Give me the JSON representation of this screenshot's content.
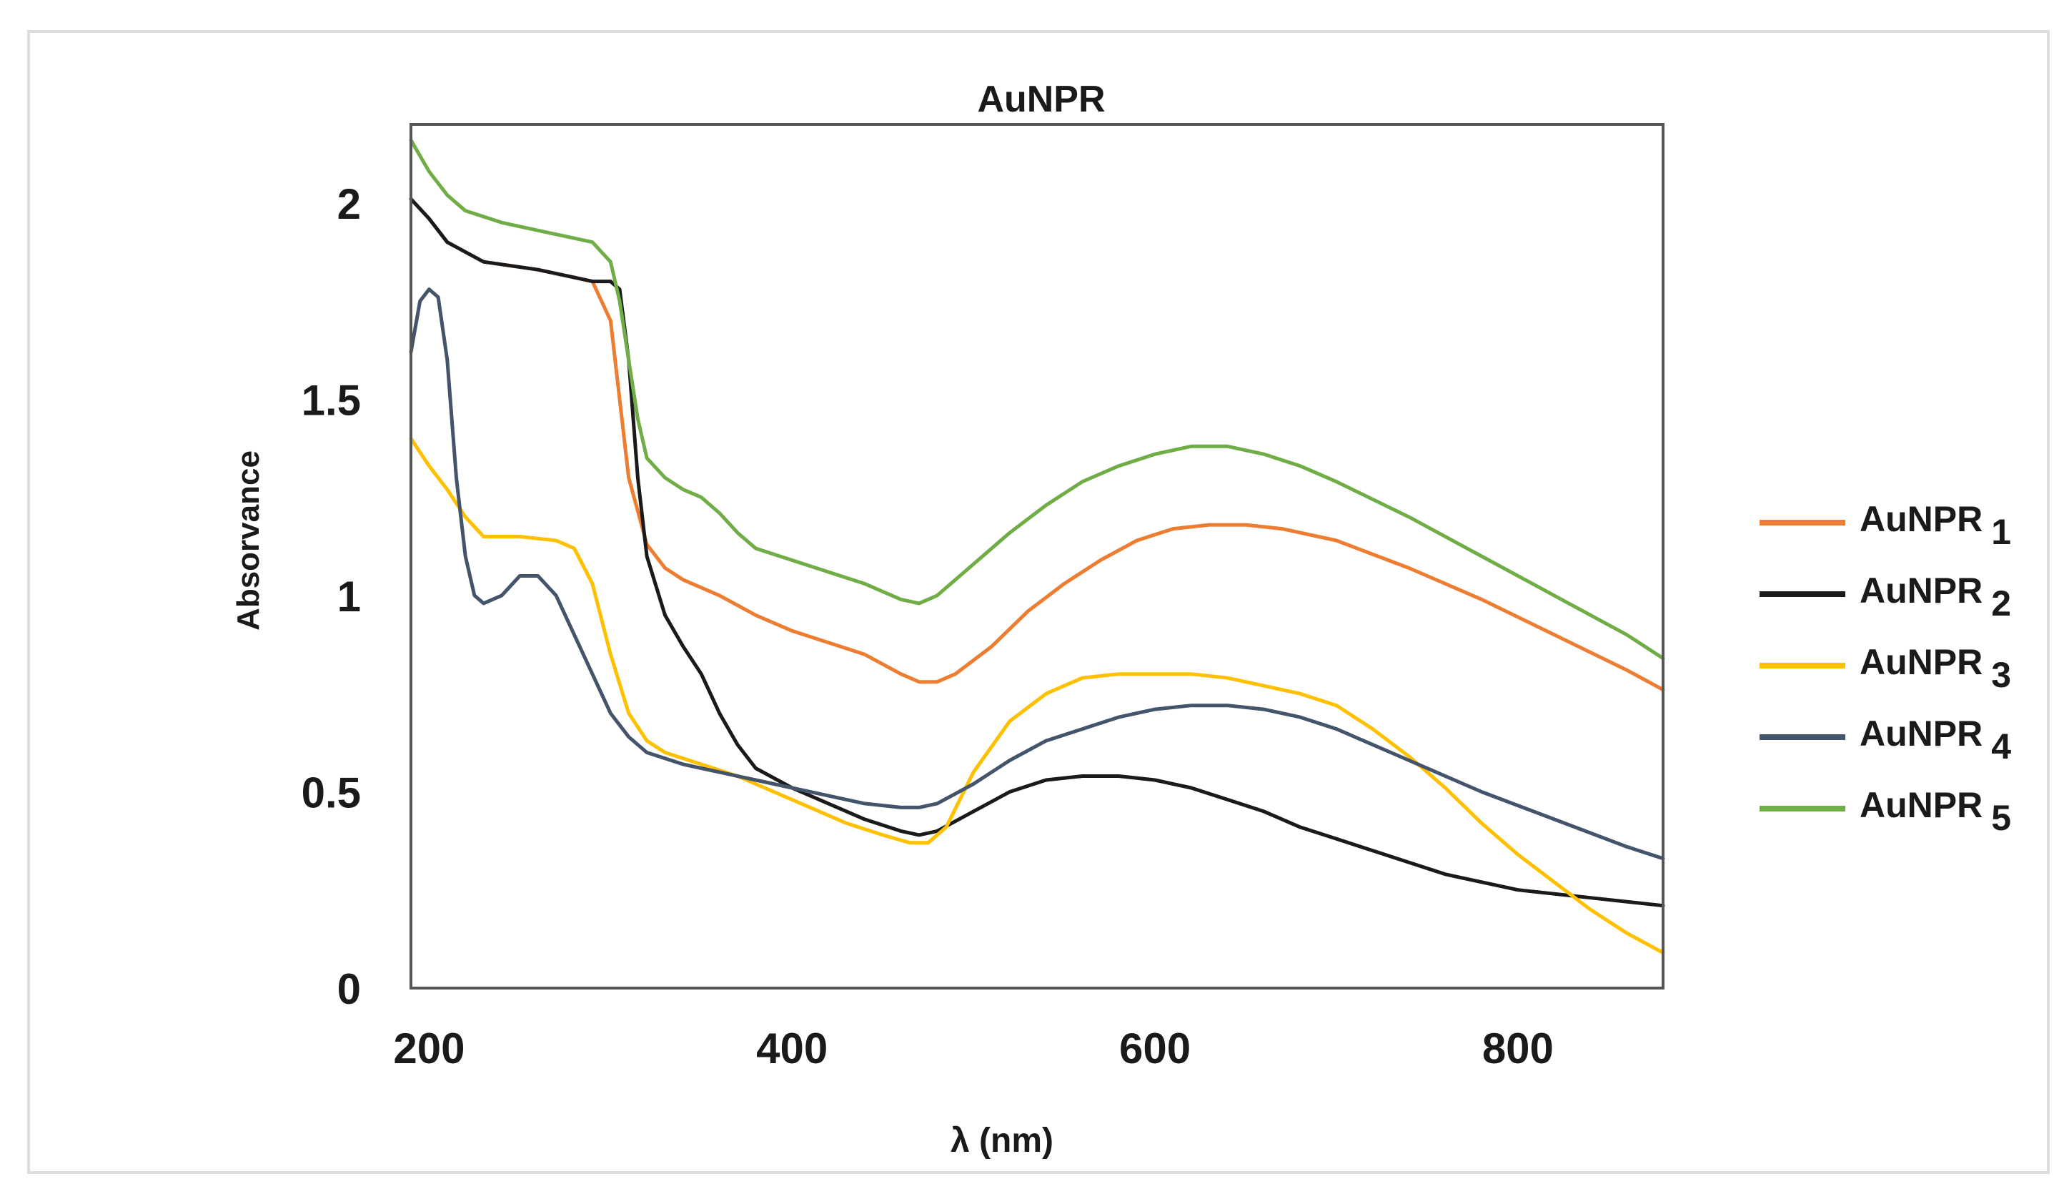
{
  "chart_data": {
    "type": "line",
    "title": "AuNPR",
    "xlabel": "λ (nm)",
    "ylabel": "Absorvance",
    "xlim": [
      190,
      880
    ],
    "ylim": [
      0,
      2.2
    ],
    "xticks": [
      200,
      400,
      600,
      800
    ],
    "yticks": [
      0,
      0.5,
      1,
      1.5,
      2
    ],
    "grid": false,
    "legend_position": "right",
    "series": [
      {
        "name": "AuNPR",
        "subscript": "1",
        "color": "#ED7D31",
        "points": [
          [
            190,
            2.01
          ],
          [
            200,
            1.96
          ],
          [
            210,
            1.9
          ],
          [
            230,
            1.85
          ],
          [
            260,
            1.83
          ],
          [
            280,
            1.81
          ],
          [
            290,
            1.8
          ],
          [
            300,
            1.7
          ],
          [
            305,
            1.5
          ],
          [
            310,
            1.3
          ],
          [
            320,
            1.13
          ],
          [
            330,
            1.07
          ],
          [
            340,
            1.04
          ],
          [
            360,
            1.0
          ],
          [
            380,
            0.95
          ],
          [
            400,
            0.91
          ],
          [
            420,
            0.88
          ],
          [
            440,
            0.85
          ],
          [
            460,
            0.8
          ],
          [
            470,
            0.78
          ],
          [
            480,
            0.78
          ],
          [
            490,
            0.8
          ],
          [
            510,
            0.87
          ],
          [
            530,
            0.96
          ],
          [
            550,
            1.03
          ],
          [
            570,
            1.09
          ],
          [
            590,
            1.14
          ],
          [
            610,
            1.17
          ],
          [
            630,
            1.18
          ],
          [
            650,
            1.18
          ],
          [
            670,
            1.17
          ],
          [
            700,
            1.14
          ],
          [
            740,
            1.07
          ],
          [
            780,
            0.99
          ],
          [
            820,
            0.9
          ],
          [
            860,
            0.81
          ],
          [
            880,
            0.76
          ]
        ]
      },
      {
        "name": "AuNPR",
        "subscript": "2",
        "color": "#1A1A1A",
        "points": [
          [
            190,
            2.01
          ],
          [
            200,
            1.96
          ],
          [
            210,
            1.9
          ],
          [
            230,
            1.85
          ],
          [
            260,
            1.83
          ],
          [
            280,
            1.81
          ],
          [
            290,
            1.8
          ],
          [
            300,
            1.8
          ],
          [
            305,
            1.78
          ],
          [
            310,
            1.6
          ],
          [
            315,
            1.3
          ],
          [
            320,
            1.1
          ],
          [
            330,
            0.95
          ],
          [
            340,
            0.87
          ],
          [
            350,
            0.8
          ],
          [
            360,
            0.7
          ],
          [
            370,
            0.62
          ],
          [
            380,
            0.56
          ],
          [
            400,
            0.51
          ],
          [
            420,
            0.47
          ],
          [
            440,
            0.43
          ],
          [
            460,
            0.4
          ],
          [
            470,
            0.39
          ],
          [
            480,
            0.4
          ],
          [
            500,
            0.45
          ],
          [
            520,
            0.5
          ],
          [
            540,
            0.53
          ],
          [
            560,
            0.54
          ],
          [
            580,
            0.54
          ],
          [
            600,
            0.53
          ],
          [
            620,
            0.51
          ],
          [
            640,
            0.48
          ],
          [
            660,
            0.45
          ],
          [
            680,
            0.41
          ],
          [
            700,
            0.38
          ],
          [
            720,
            0.35
          ],
          [
            760,
            0.29
          ],
          [
            800,
            0.25
          ],
          [
            840,
            0.23
          ],
          [
            880,
            0.21
          ]
        ]
      },
      {
        "name": "AuNPR",
        "subscript": "3",
        "color": "#FFC000",
        "points": [
          [
            190,
            1.4
          ],
          [
            200,
            1.33
          ],
          [
            210,
            1.27
          ],
          [
            220,
            1.2
          ],
          [
            230,
            1.15
          ],
          [
            250,
            1.15
          ],
          [
            270,
            1.14
          ],
          [
            280,
            1.12
          ],
          [
            290,
            1.03
          ],
          [
            300,
            0.85
          ],
          [
            310,
            0.7
          ],
          [
            320,
            0.63
          ],
          [
            330,
            0.6
          ],
          [
            350,
            0.57
          ],
          [
            370,
            0.54
          ],
          [
            390,
            0.5
          ],
          [
            410,
            0.46
          ],
          [
            430,
            0.42
          ],
          [
            450,
            0.39
          ],
          [
            465,
            0.37
          ],
          [
            475,
            0.37
          ],
          [
            485,
            0.41
          ],
          [
            500,
            0.55
          ],
          [
            520,
            0.68
          ],
          [
            540,
            0.75
          ],
          [
            560,
            0.79
          ],
          [
            580,
            0.8
          ],
          [
            600,
            0.8
          ],
          [
            620,
            0.8
          ],
          [
            640,
            0.79
          ],
          [
            660,
            0.77
          ],
          [
            680,
            0.75
          ],
          [
            700,
            0.72
          ],
          [
            720,
            0.66
          ],
          [
            740,
            0.59
          ],
          [
            760,
            0.51
          ],
          [
            780,
            0.42
          ],
          [
            800,
            0.34
          ],
          [
            820,
            0.27
          ],
          [
            840,
            0.2
          ],
          [
            860,
            0.14
          ],
          [
            880,
            0.09
          ]
        ]
      },
      {
        "name": "AuNPR",
        "subscript": "4",
        "color": "#44546A",
        "points": [
          [
            190,
            1.62
          ],
          [
            195,
            1.75
          ],
          [
            200,
            1.78
          ],
          [
            205,
            1.76
          ],
          [
            210,
            1.6
          ],
          [
            215,
            1.3
          ],
          [
            220,
            1.1
          ],
          [
            225,
            1.0
          ],
          [
            230,
            0.98
          ],
          [
            240,
            1.0
          ],
          [
            250,
            1.05
          ],
          [
            260,
            1.05
          ],
          [
            270,
            1.0
          ],
          [
            280,
            0.9
          ],
          [
            290,
            0.8
          ],
          [
            300,
            0.7
          ],
          [
            310,
            0.64
          ],
          [
            320,
            0.6
          ],
          [
            340,
            0.57
          ],
          [
            360,
            0.55
          ],
          [
            380,
            0.53
          ],
          [
            400,
            0.51
          ],
          [
            420,
            0.49
          ],
          [
            440,
            0.47
          ],
          [
            460,
            0.46
          ],
          [
            470,
            0.46
          ],
          [
            480,
            0.47
          ],
          [
            500,
            0.52
          ],
          [
            520,
            0.58
          ],
          [
            540,
            0.63
          ],
          [
            560,
            0.66
          ],
          [
            580,
            0.69
          ],
          [
            600,
            0.71
          ],
          [
            620,
            0.72
          ],
          [
            640,
            0.72
          ],
          [
            660,
            0.71
          ],
          [
            680,
            0.69
          ],
          [
            700,
            0.66
          ],
          [
            740,
            0.58
          ],
          [
            780,
            0.5
          ],
          [
            820,
            0.43
          ],
          [
            860,
            0.36
          ],
          [
            880,
            0.33
          ]
        ]
      },
      {
        "name": "AuNPR",
        "subscript": "5",
        "color": "#70AD47",
        "points": [
          [
            190,
            2.16
          ],
          [
            200,
            2.08
          ],
          [
            210,
            2.02
          ],
          [
            220,
            1.98
          ],
          [
            240,
            1.95
          ],
          [
            260,
            1.93
          ],
          [
            280,
            1.91
          ],
          [
            290,
            1.9
          ],
          [
            300,
            1.85
          ],
          [
            305,
            1.75
          ],
          [
            310,
            1.6
          ],
          [
            315,
            1.45
          ],
          [
            320,
            1.35
          ],
          [
            330,
            1.3
          ],
          [
            340,
            1.27
          ],
          [
            350,
            1.25
          ],
          [
            360,
            1.21
          ],
          [
            370,
            1.16
          ],
          [
            380,
            1.12
          ],
          [
            400,
            1.09
          ],
          [
            420,
            1.06
          ],
          [
            440,
            1.03
          ],
          [
            460,
            0.99
          ],
          [
            470,
            0.98
          ],
          [
            480,
            1.0
          ],
          [
            500,
            1.08
          ],
          [
            520,
            1.16
          ],
          [
            540,
            1.23
          ],
          [
            560,
            1.29
          ],
          [
            580,
            1.33
          ],
          [
            600,
            1.36
          ],
          [
            620,
            1.38
          ],
          [
            640,
            1.38
          ],
          [
            660,
            1.36
          ],
          [
            680,
            1.33
          ],
          [
            700,
            1.29
          ],
          [
            740,
            1.2
          ],
          [
            780,
            1.1
          ],
          [
            820,
            1.0
          ],
          [
            860,
            0.9
          ],
          [
            880,
            0.84
          ]
        ]
      }
    ]
  }
}
